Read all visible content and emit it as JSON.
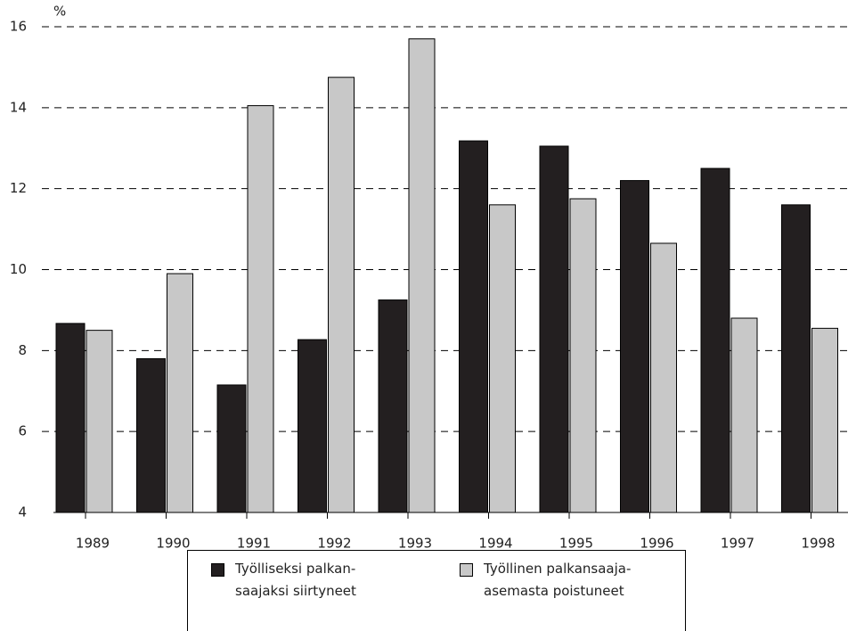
{
  "chart_data": {
    "type": "bar",
    "y_label": "%",
    "categories": [
      "1989",
      "1990",
      "1991",
      "1992",
      "1993",
      "1994",
      "1995",
      "1996",
      "1997",
      "1998"
    ],
    "series": [
      {
        "name": "Työlliseksi palkan-\nsaajaksi siirtyneet",
        "color": "#231f20",
        "values": [
          8.67,
          7.8,
          7.15,
          8.27,
          9.25,
          13.18,
          13.05,
          12.2,
          12.5,
          11.6
        ]
      },
      {
        "name": "Työllinen palkansaaja-\nasemasta poistuneet",
        "color": "#c8c8c8",
        "values": [
          8.5,
          9.9,
          14.05,
          14.75,
          15.7,
          11.6,
          11.75,
          10.65,
          8.8,
          8.55
        ]
      }
    ],
    "ylim": [
      4,
      16
    ],
    "yticks": [
      4,
      6,
      8,
      10,
      12,
      14,
      16
    ],
    "grid": true,
    "legend": "bottom"
  }
}
